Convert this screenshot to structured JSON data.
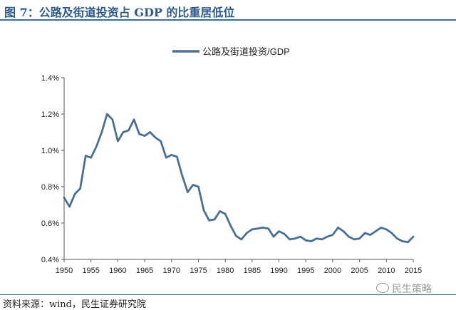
{
  "header": {
    "title": "图 7：公路及街道投资占 GDP 的比重居低位"
  },
  "footer": {
    "source": "资料来源：wind，民生证券研究院",
    "watermark": "民生策略"
  },
  "colors": {
    "series": "#4a6f93",
    "title": "#2c5a8c"
  },
  "chart_data": {
    "type": "line",
    "title": "",
    "xlabel": "",
    "ylabel": "",
    "ylim": [
      0.4,
      1.4
    ],
    "xlim": [
      1950,
      2015
    ],
    "y_ticks": [
      "0.4%",
      "0.6%",
      "0.8%",
      "1.0%",
      "1.2%",
      "1.4%"
    ],
    "x_ticks": [
      "1950",
      "1955",
      "1960",
      "1965",
      "1970",
      "1975",
      "1980",
      "1985",
      "1990",
      "1995",
      "2000",
      "2005",
      "2010",
      "2015"
    ],
    "grid": false,
    "legend_position": "top",
    "series": [
      {
        "name": "公路及街道投资/GDP",
        "x": [
          1950,
          1951,
          1952,
          1953,
          1954,
          1955,
          1956,
          1957,
          1958,
          1959,
          1960,
          1961,
          1962,
          1963,
          1964,
          1965,
          1966,
          1967,
          1968,
          1969,
          1970,
          1971,
          1972,
          1973,
          1974,
          1975,
          1976,
          1977,
          1978,
          1979,
          1980,
          1981,
          1982,
          1983,
          1984,
          1985,
          1986,
          1987,
          1988,
          1989,
          1990,
          1991,
          1992,
          1993,
          1994,
          1995,
          1996,
          1997,
          1998,
          1999,
          2000,
          2001,
          2002,
          2003,
          2004,
          2005,
          2006,
          2007,
          2008,
          2009,
          2010,
          2011,
          2012,
          2013,
          2014,
          2015
        ],
        "values": [
          0.74,
          0.69,
          0.76,
          0.79,
          0.97,
          0.96,
          1.02,
          1.1,
          1.2,
          1.17,
          1.05,
          1.1,
          1.11,
          1.17,
          1.09,
          1.08,
          1.1,
          1.07,
          1.05,
          0.96,
          0.975,
          0.965,
          0.86,
          0.77,
          0.81,
          0.8,
          0.67,
          0.615,
          0.62,
          0.665,
          0.65,
          0.585,
          0.53,
          0.51,
          0.545,
          0.565,
          0.57,
          0.575,
          0.57,
          0.525,
          0.555,
          0.54,
          0.51,
          0.515,
          0.525,
          0.505,
          0.5,
          0.515,
          0.51,
          0.525,
          0.535,
          0.575,
          0.555,
          0.525,
          0.51,
          0.515,
          0.545,
          0.535,
          0.555,
          0.575,
          0.565,
          0.545,
          0.515,
          0.5,
          0.495,
          0.525
        ]
      }
    ]
  }
}
